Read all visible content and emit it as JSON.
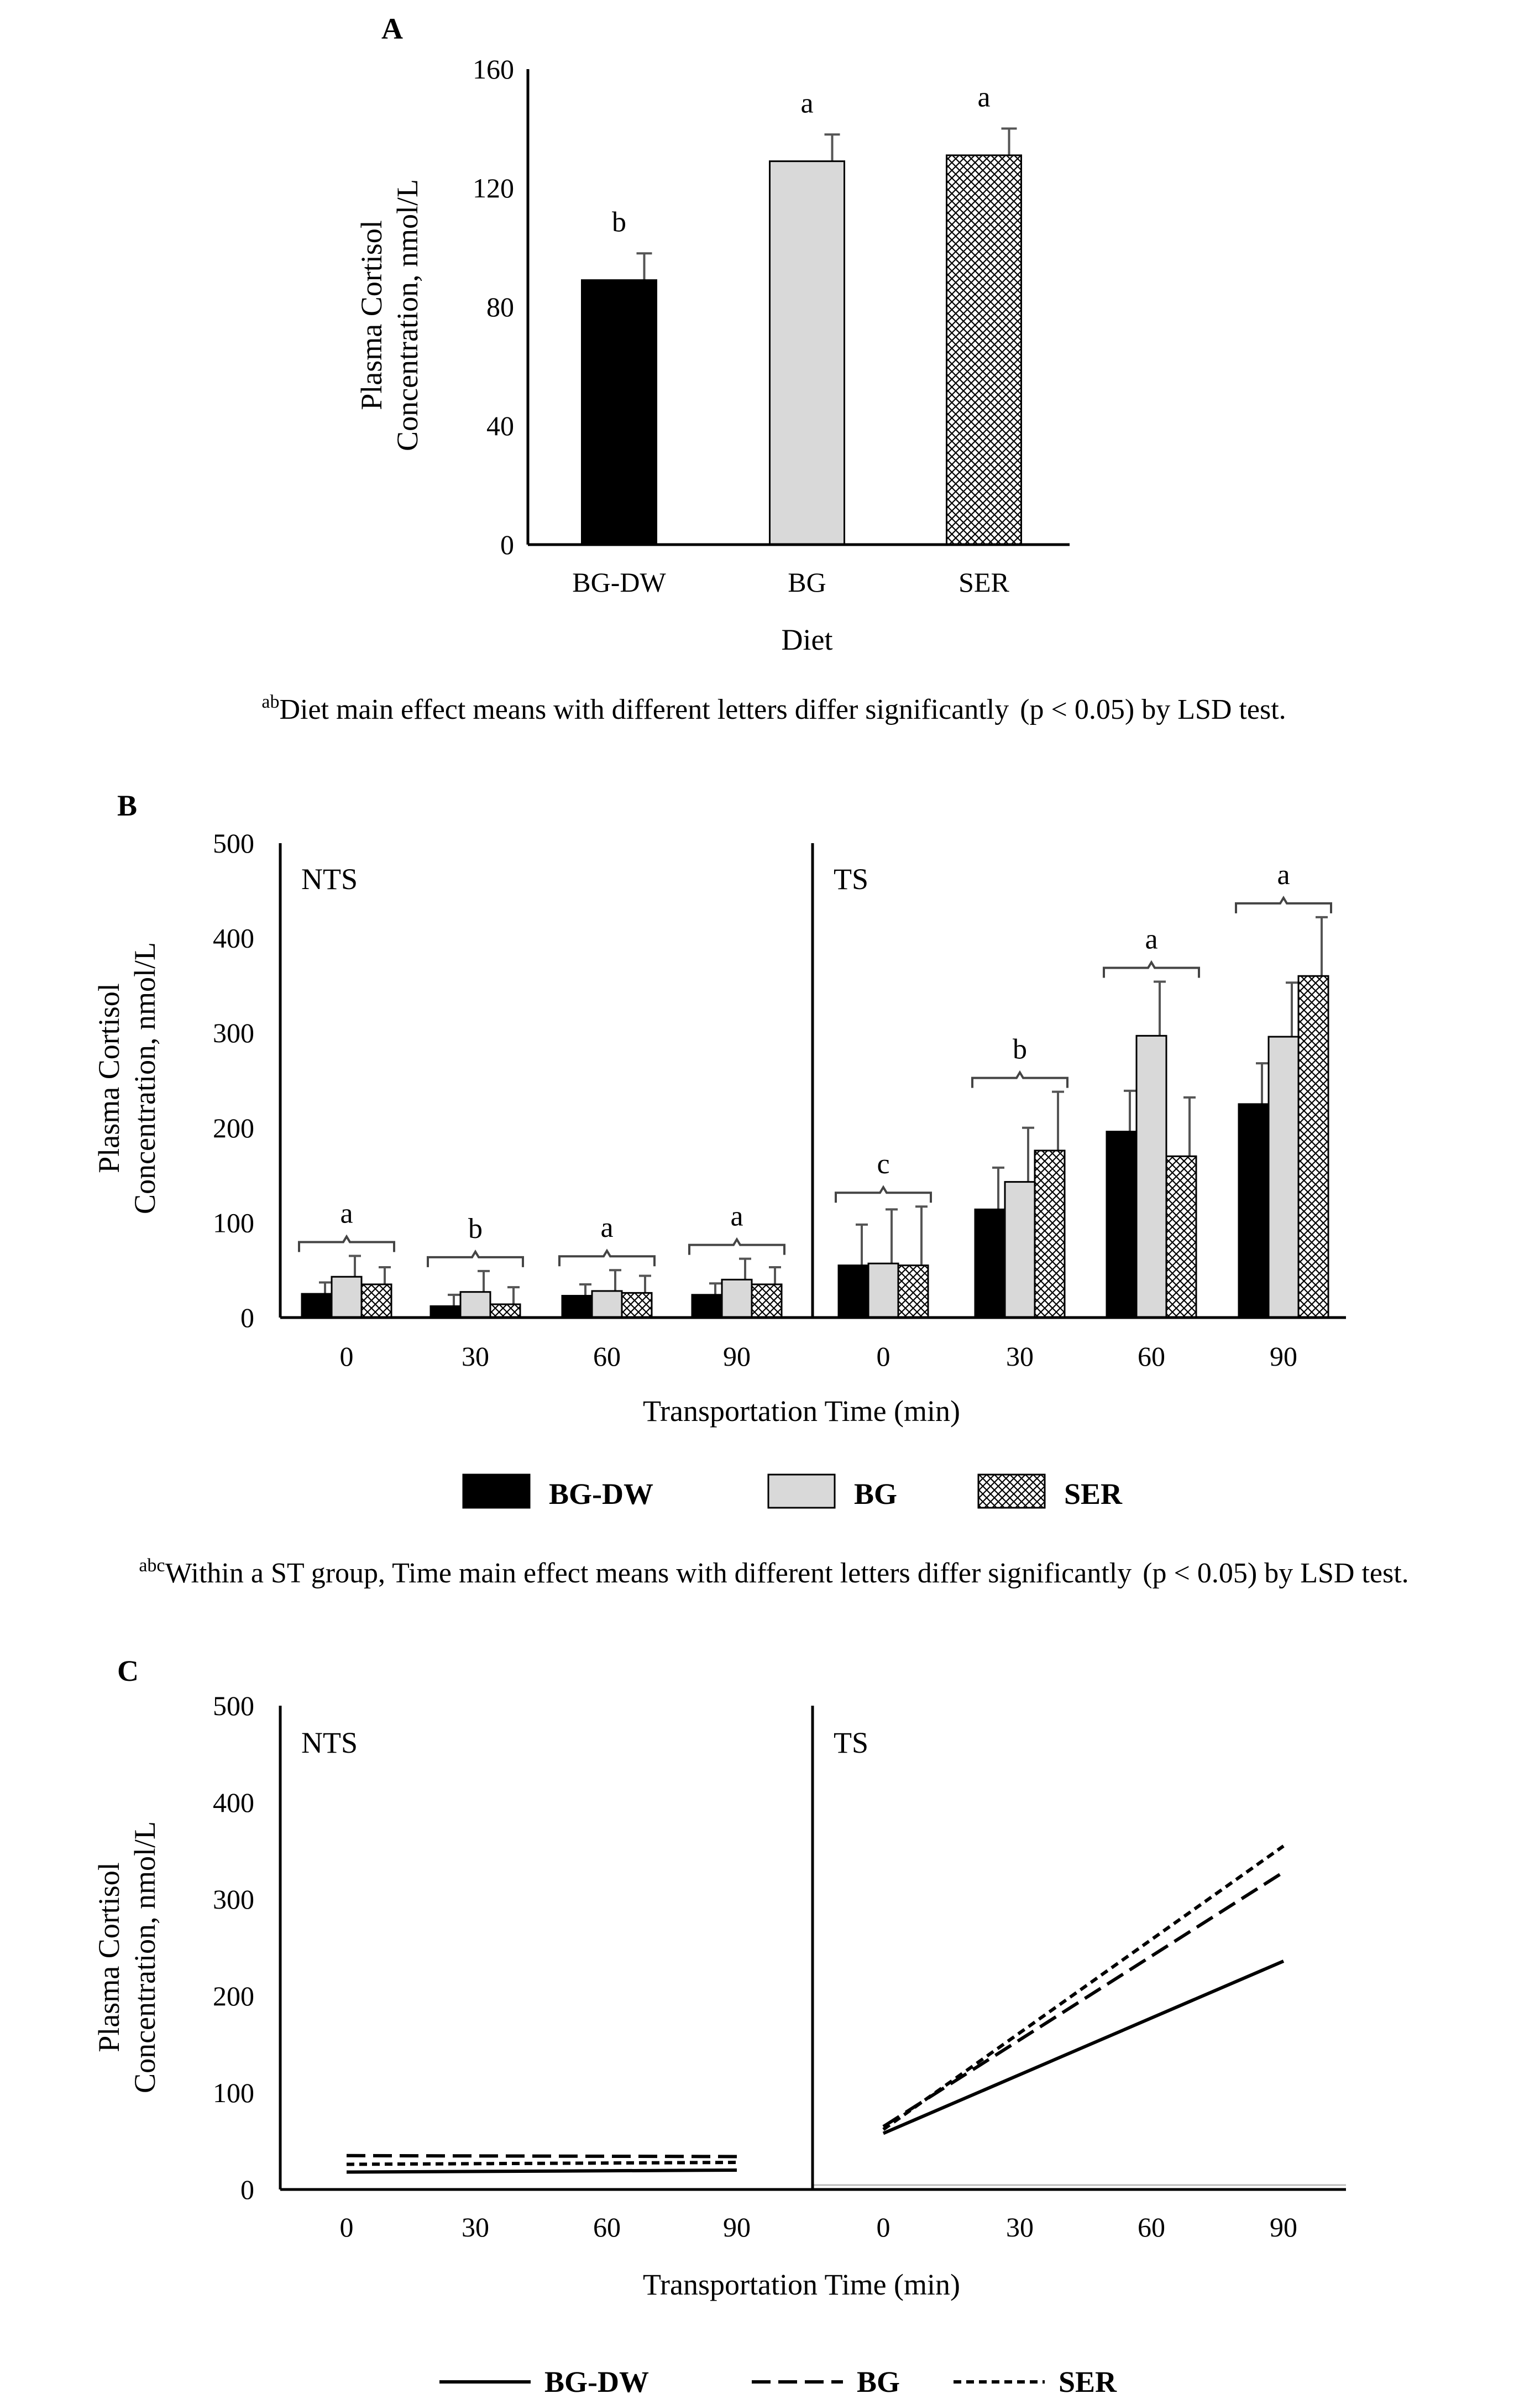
{
  "chart_data": [
    {
      "panel": "A",
      "type": "bar",
      "title": "",
      "categories": [
        "BG-DW",
        "BG",
        "SER"
      ],
      "values": [
        89,
        129,
        131
      ],
      "errors": [
        9,
        9,
        9
      ],
      "sig_letters": [
        "b",
        "a",
        "a"
      ],
      "xlabel": "Diet",
      "ylabel_lines": [
        "Plasma Cortisol",
        "Concentration, nmol/L"
      ],
      "ylim": [
        0,
        160
      ],
      "yticks": [
        "0",
        "40",
        "80",
        "120",
        "160"
      ],
      "series_styles": [
        "#000000",
        "#d9d9d9",
        "crosshatch"
      ],
      "footnote_sup": "ab",
      "footnote_main": "Diet main effect means with different letters differ significantly",
      "footnote_p": "(p < 0.05) by LSD test."
    },
    {
      "panel": "B",
      "type": "bar",
      "groups": [
        {
          "label": "NTS",
          "times": [
            "0",
            "30",
            "60",
            "90"
          ],
          "sig_letters": [
            "a",
            "b",
            "a",
            "a"
          ],
          "series": [
            {
              "name": "BG-DW",
              "values": [
                25,
                12,
                23,
                24
              ],
              "errors": [
                12,
                12,
                12,
                12
              ]
            },
            {
              "name": "BG",
              "values": [
                43,
                27,
                28,
                40
              ],
              "errors": [
                22,
                22,
                22,
                22
              ]
            },
            {
              "name": "SER",
              "values": [
                35,
                14,
                26,
                35
              ],
              "errors": [
                18,
                18,
                18,
                18
              ]
            }
          ]
        },
        {
          "label": "TS",
          "times": [
            "0",
            "30",
            "60",
            "90"
          ],
          "sig_letters": [
            "c",
            "b",
            "a",
            "a"
          ],
          "series": [
            {
              "name": "BG-DW",
              "values": [
                55,
                114,
                196,
                225
              ],
              "errors": [
                43,
                44,
                43,
                43
              ]
            },
            {
              "name": "BG",
              "values": [
                57,
                143,
                297,
                296
              ],
              "errors": [
                57,
                57,
                57,
                57
              ]
            },
            {
              "name": "SER",
              "values": [
                55,
                176,
                170,
                360
              ],
              "errors": [
                62,
                62,
                62,
                62
              ]
            }
          ]
        }
      ],
      "xlabel": "Transportation Time (min)",
      "ylabel_lines": [
        "Plasma Cortisol",
        "Concentration, nmol/L"
      ],
      "ylim": [
        0,
        500
      ],
      "yticks": [
        "0",
        "100",
        "200",
        "300",
        "400",
        "500"
      ],
      "legend": [
        "BG-DW",
        "BG",
        "SER"
      ],
      "footnote_sup": "abc",
      "footnote_main": "Within a ST group, Time main effect means with different letters differ significantly",
      "footnote_p": "(p < 0.05) by LSD test."
    },
    {
      "panel": "C",
      "type": "line",
      "groups": [
        {
          "label": "NTS",
          "times": [
            "0",
            "30",
            "60",
            "90"
          ],
          "series": [
            {
              "name": "BG-DW",
              "start": 18,
              "end": 20
            },
            {
              "name": "BG",
              "start": 35,
              "end": 34
            },
            {
              "name": "SER",
              "start": 26,
              "end": 28
            }
          ]
        },
        {
          "label": "TS",
          "times": [
            "0",
            "30",
            "60",
            "90"
          ],
          "series": [
            {
              "name": "BG-DW",
              "start": 58,
              "end": 236
            },
            {
              "name": "BG",
              "start": 65,
              "end": 328
            },
            {
              "name": "SER",
              "start": 62,
              "end": 355
            }
          ]
        }
      ],
      "xlabel": "Transportation Time (min)",
      "ylabel_lines": [
        "Plasma Cortisol",
        "Concentration, nmol/L"
      ],
      "ylim": [
        0,
        500
      ],
      "yticks": [
        "0",
        "100",
        "200",
        "300",
        "400",
        "500"
      ],
      "legend": [
        "BG-DW",
        "BG",
        "SER"
      ]
    }
  ]
}
